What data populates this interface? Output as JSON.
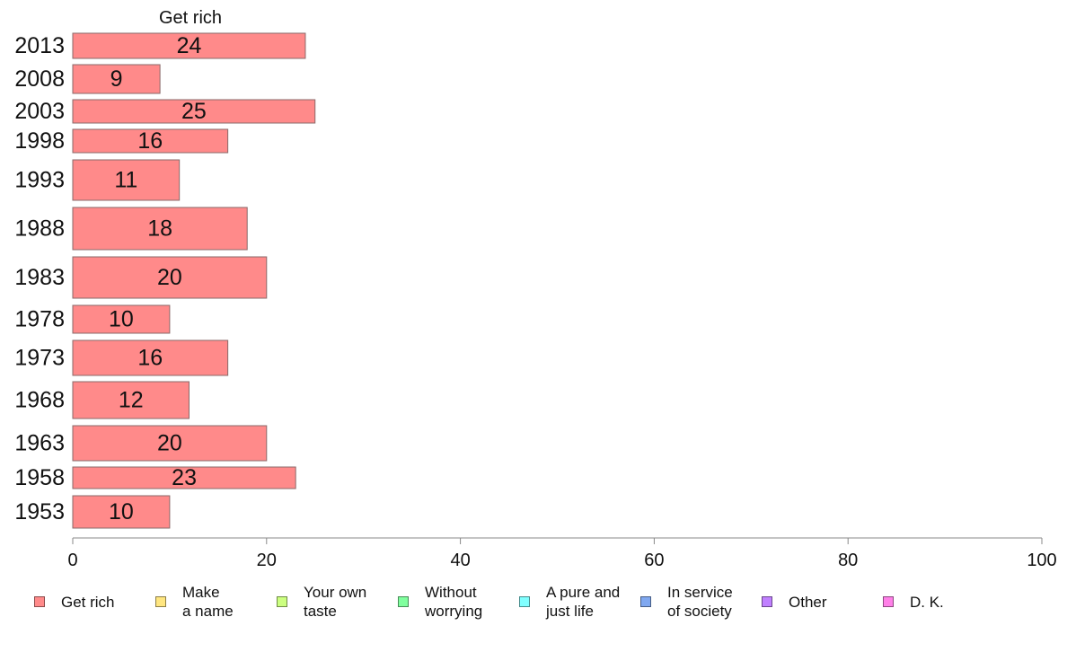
{
  "chart_data": {
    "type": "bar",
    "orientation": "horizontal",
    "title": "Get rich",
    "categories": [
      "2013",
      "2008",
      "2003",
      "1998",
      "1993",
      "1988",
      "1983",
      "1978",
      "1973",
      "1968",
      "1963",
      "1958",
      "1953"
    ],
    "series": [
      {
        "name": "Get rich",
        "color": "#ff8a8a",
        "values": [
          24,
          9,
          25,
          16,
          11,
          18,
          20,
          10,
          16,
          12,
          20,
          23,
          10
        ]
      }
    ],
    "xlim": [
      0,
      100
    ],
    "xticks": [
      0,
      20,
      40,
      60,
      80,
      100
    ],
    "grid": false,
    "legend_position": "bottom",
    "legend": [
      {
        "label": "Get rich",
        "color": "#ff8a8a"
      },
      {
        "label": "Make\na name",
        "color": "#ffe680"
      },
      {
        "label": "Your own\ntaste",
        "color": "#ccff80"
      },
      {
        "label": "Without\nworrying",
        "color": "#80ff9e"
      },
      {
        "label": "A pure and\njust life",
        "color": "#80ffff"
      },
      {
        "label": "In service\nof society",
        "color": "#80a8f0"
      },
      {
        "label": "Other",
        "color": "#c080ff"
      },
      {
        "label": "D. K.",
        "color": "#ff80e8"
      }
    ]
  }
}
